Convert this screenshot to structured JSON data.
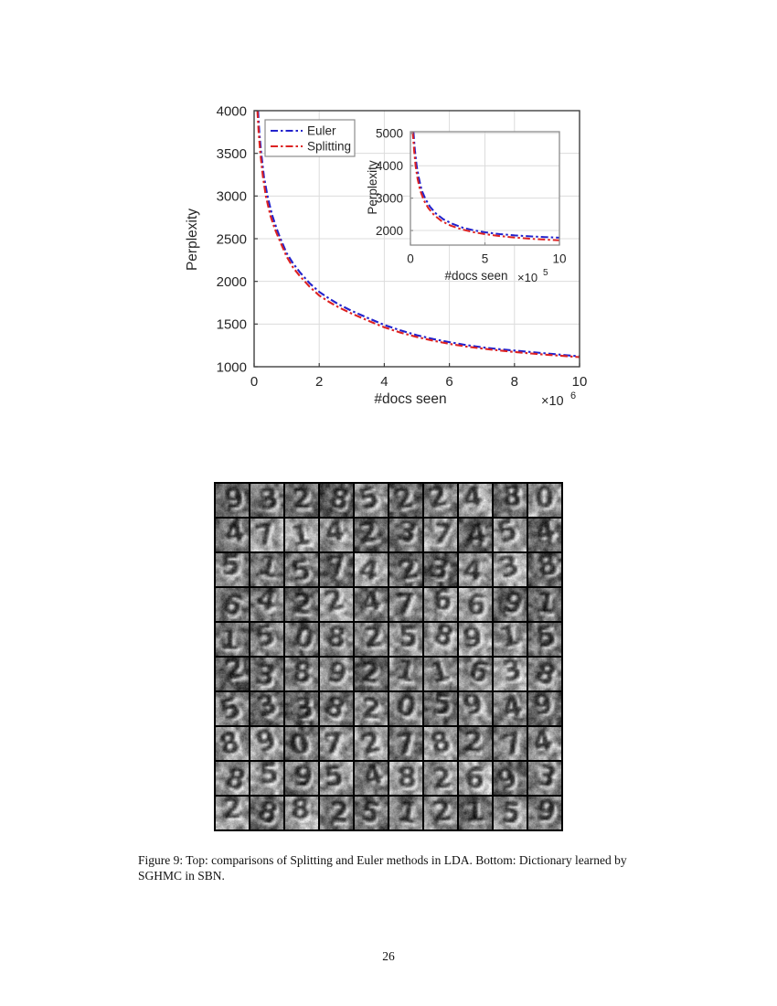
{
  "page": {
    "number": "26"
  },
  "caption": {
    "lines": [
      "Figure 9: Top: comparisons of Splitting and Euler methods in LDA. Bottom: Dictionary learned by",
      "SGHMC in SBN."
    ]
  },
  "colors": {
    "euler": "#2222CC",
    "splitting": "#DD2222",
    "grid_line": "#DCDCDC",
    "axis": "#404040",
    "inset_border": "#8C8C8C",
    "legend_border": "#8C8C8C"
  },
  "chart_data": [
    {
      "type": "line",
      "role": "main",
      "xlabel": "#docs seen",
      "x_scale_label": "×10",
      "x_scale_exponent": "6",
      "ylabel": "Perplexity",
      "xlim": [
        0,
        10
      ],
      "ylim": [
        1000,
        4000
      ],
      "xticks": [
        "0",
        "2",
        "4",
        "6",
        "8",
        "10"
      ],
      "xtick_values": [
        0,
        2,
        4,
        6,
        8,
        10
      ],
      "yticks": [
        "1000",
        "1500",
        "2000",
        "2500",
        "3000",
        "3500",
        "4000"
      ],
      "ytick_values": [
        1000,
        1500,
        2000,
        2500,
        3000,
        3500,
        4000
      ],
      "grid": true,
      "legend": {
        "position": "top-left",
        "entries": [
          "Euler",
          "Splitting"
        ]
      },
      "series": [
        {
          "name": "Euler",
          "color": "#2222CC",
          "style": "dash-dot",
          "x": [
            0.12,
            0.16,
            0.22,
            0.3,
            0.41,
            0.55,
            0.7,
            0.81,
            1.0,
            1.2,
            1.4,
            1.7,
            2.0,
            2.3,
            2.6,
            3.0,
            3.5,
            4.0,
            4.5,
            5.0,
            5.5,
            6.0,
            6.5,
            7.0,
            7.5,
            8.0,
            8.5,
            9.0,
            9.5,
            10.0
          ],
          "y": [
            4000,
            3740,
            3500,
            3230,
            3000,
            2780,
            2610,
            2500,
            2330,
            2210,
            2110,
            1980,
            1878,
            1800,
            1730,
            1655,
            1570,
            1490,
            1425,
            1370,
            1325,
            1288,
            1255,
            1228,
            1207,
            1190,
            1172,
            1155,
            1138,
            1122
          ]
        },
        {
          "name": "Splitting",
          "color": "#DD2222",
          "style": "dash-dot",
          "x": [
            0.1,
            0.14,
            0.19,
            0.27,
            0.36,
            0.5,
            0.64,
            0.75,
            1.0,
            1.2,
            1.4,
            1.7,
            2.0,
            2.3,
            2.6,
            3.0,
            3.5,
            4.0,
            4.5,
            5.0,
            5.5,
            6.0,
            6.5,
            7.0,
            7.5,
            8.0,
            8.5,
            9.0,
            9.5,
            10.0
          ],
          "y": [
            4000,
            3740,
            3500,
            3230,
            3000,
            2770,
            2610,
            2510,
            2290,
            2160,
            2065,
            1940,
            1835,
            1760,
            1695,
            1622,
            1540,
            1462,
            1400,
            1348,
            1305,
            1268,
            1238,
            1213,
            1192,
            1172,
            1155,
            1140,
            1126,
            1112
          ]
        }
      ]
    },
    {
      "type": "line",
      "role": "inset",
      "xlabel": "#docs seen",
      "x_scale_label": "×10",
      "x_scale_exponent": "5",
      "ylabel": "Perplexity",
      "xlim": [
        0,
        10
      ],
      "ylim": [
        1550,
        5050
      ],
      "xticks": [
        "0",
        "5",
        "10"
      ],
      "xtick_values": [
        0,
        5,
        10
      ],
      "yticks": [
        "2000",
        "3000",
        "4000",
        "5000"
      ],
      "ytick_values": [
        2000,
        3000,
        4000,
        5000
      ],
      "grid": true,
      "legend": null,
      "series": [
        {
          "name": "Euler",
          "color": "#2222CC",
          "style": "dash-dot",
          "x": [
            0.2,
            0.25,
            0.3,
            0.42,
            0.55,
            0.75,
            1.0,
            1.3,
            1.7,
            2.2,
            2.8,
            3.5,
            4.2,
            5.0,
            6.0,
            7.0,
            8.0,
            9.0,
            10.0
          ],
          "y": [
            5050,
            4750,
            4480,
            4000,
            3650,
            3250,
            2980,
            2740,
            2530,
            2350,
            2210,
            2090,
            2010,
            1945,
            1890,
            1850,
            1820,
            1798,
            1780
          ]
        },
        {
          "name": "Splitting",
          "color": "#DD2222",
          "style": "dash-dot",
          "x": [
            0.15,
            0.2,
            0.25,
            0.35,
            0.48,
            0.65,
            0.9,
            1.2,
            1.6,
            2.1,
            2.7,
            3.4,
            4.2,
            5.0,
            6.0,
            7.0,
            8.0,
            9.0,
            10.0
          ],
          "y": [
            5050,
            4750,
            4450,
            3980,
            3600,
            3240,
            2930,
            2690,
            2470,
            2290,
            2150,
            2040,
            1950,
            1888,
            1830,
            1785,
            1748,
            1722,
            1700
          ]
        }
      ]
    }
  ],
  "dictionary_grid": {
    "rows": 10,
    "cols": 10,
    "seed": 1337,
    "description": "10x10 grid of grayscale digit-like dictionary filters learned by SGHMC in SBN"
  }
}
